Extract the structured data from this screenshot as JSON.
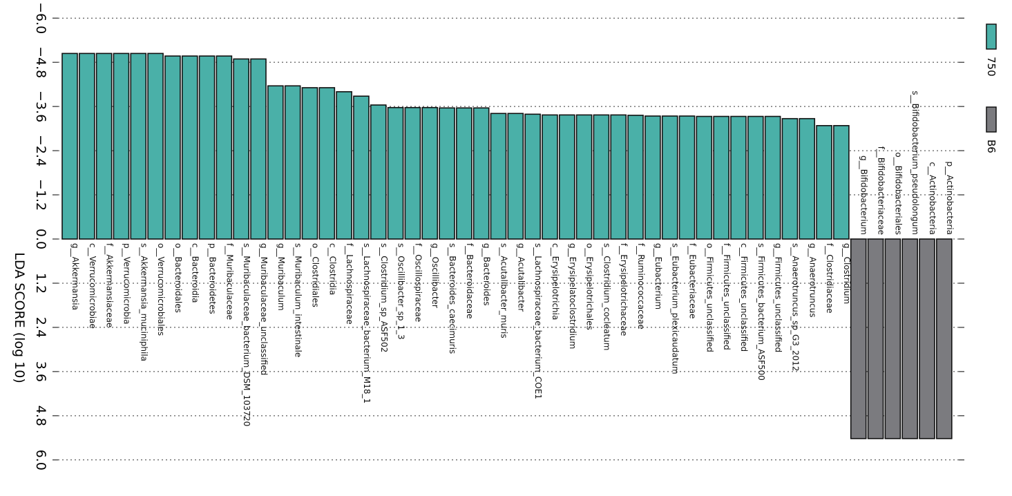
{
  "chart_data": {
    "type": "bar",
    "orientation": "rotated-90",
    "title": "",
    "ylabel": "LDA SCORE (log 10)",
    "ylim": [
      -6.0,
      6.0
    ],
    "yticks": [
      "-6.0",
      "-4.8",
      "-3.6",
      "-2.4",
      "-1.2",
      "0.0",
      "1.2",
      "2.4",
      "3.6",
      "4.8",
      "6.0"
    ],
    "grid": true,
    "legend": {
      "placement": "right",
      "entries": [
        {
          "name": "750",
          "color": "#4ab0a8"
        },
        {
          "name": "B6",
          "color": "#7b7b7f"
        }
      ]
    },
    "bars": [
      {
        "label": "g__Akkermansia",
        "group": "750",
        "value": -5.04
      },
      {
        "label": "c__Verrucomicrobiae",
        "group": "750",
        "value": -5.04
      },
      {
        "label": "f__Akkermansiaceae",
        "group": "750",
        "value": -5.04
      },
      {
        "label": "p__Verrucomicrobia",
        "group": "750",
        "value": -5.04
      },
      {
        "label": "s__Akkermansia_muciniphila",
        "group": "750",
        "value": -5.04
      },
      {
        "label": "o__Verrucomicrobiales",
        "group": "750",
        "value": -5.04
      },
      {
        "label": "o__Bacteroidales",
        "group": "750",
        "value": -4.97
      },
      {
        "label": "c__Bacteroidia",
        "group": "750",
        "value": -4.97
      },
      {
        "label": "p__Bacteroidetes",
        "group": "750",
        "value": -4.97
      },
      {
        "label": "f__Muribaculaceae",
        "group": "750",
        "value": -4.97
      },
      {
        "label": "s__Muribaculaceae_bacterium_DSM_103720",
        "group": "750",
        "value": -4.89
      },
      {
        "label": "g__Muribaculaceae_unclassified",
        "group": "750",
        "value": -4.89
      },
      {
        "label": "g__Muribaculum",
        "group": "750",
        "value": -4.16
      },
      {
        "label": "s__Muribaculum_intestinale",
        "group": "750",
        "value": -4.16
      },
      {
        "label": "o__Clostridiales",
        "group": "750",
        "value": -4.11
      },
      {
        "label": "c__Clostridia",
        "group": "750",
        "value": -4.11
      },
      {
        "label": "f__Lachnospiraceae",
        "group": "750",
        "value": -4.0
      },
      {
        "label": "s__Lachnospiraceae_bacterium_M18_1",
        "group": "750",
        "value": -3.88
      },
      {
        "label": "s__Clostridium_sp_ASF502",
        "group": "750",
        "value": -3.64
      },
      {
        "label": "s__Oscillibacter_sp_1_3",
        "group": "750",
        "value": -3.57
      },
      {
        "label": "f__Oscillospiraceae",
        "group": "750",
        "value": -3.57
      },
      {
        "label": "g__Oscillibacter",
        "group": "750",
        "value": -3.57
      },
      {
        "label": "s__Bacteroides_caecimuris",
        "group": "750",
        "value": -3.56
      },
      {
        "label": "f__Bacteroidaceae",
        "group": "750",
        "value": -3.56
      },
      {
        "label": "g__Bacteroides",
        "group": "750",
        "value": -3.56
      },
      {
        "label": "s__Acutalibacter_muris",
        "group": "750",
        "value": -3.41
      },
      {
        "label": "g__Acutalibacter",
        "group": "750",
        "value": -3.41
      },
      {
        "label": "s__Lachnospiraceae_bacterium_COE1",
        "group": "750",
        "value": -3.39
      },
      {
        "label": "c__Erysipelotrichia",
        "group": "750",
        "value": -3.37
      },
      {
        "label": "g__Erysipelatoclostridium",
        "group": "750",
        "value": -3.37
      },
      {
        "label": "o__Erysipelotrichales",
        "group": "750",
        "value": -3.37
      },
      {
        "label": "s__Clostridium_cocleatum",
        "group": "750",
        "value": -3.37
      },
      {
        "label": "f__Erysipelotrichaceae",
        "group": "750",
        "value": -3.37
      },
      {
        "label": "f__Ruminococcaceae",
        "group": "750",
        "value": -3.36
      },
      {
        "label": "g__Eubacterium",
        "group": "750",
        "value": -3.34
      },
      {
        "label": "s__Eubacterium_plexicaudatum",
        "group": "750",
        "value": -3.34
      },
      {
        "label": "f__Eubacteriaceae",
        "group": "750",
        "value": -3.34
      },
      {
        "label": "o__Firmicutes_unclassified",
        "group": "750",
        "value": -3.33
      },
      {
        "label": "f__Firmicutes_unclassified",
        "group": "750",
        "value": -3.33
      },
      {
        "label": "c__Firmicutes_unclassified",
        "group": "750",
        "value": -3.33
      },
      {
        "label": "s__Firmicutes_bacterium_ASF500",
        "group": "750",
        "value": -3.33
      },
      {
        "label": "g__Firmicutes_unclassified",
        "group": "750",
        "value": -3.33
      },
      {
        "label": "s__Anaerotruncus_sp_G3_2012",
        "group": "750",
        "value": -3.27
      },
      {
        "label": "g__Anaerotruncus",
        "group": "750",
        "value": -3.27
      },
      {
        "label": "f__Clostridiaceae",
        "group": "750",
        "value": -3.08
      },
      {
        "label": "g__Clostridium",
        "group": "750",
        "value": -3.08
      },
      {
        "label": "g__Bifidobacterium",
        "group": "B6",
        "value": 5.42
      },
      {
        "label": "f__Bifidobacteriaceae",
        "group": "B6",
        "value": 5.42
      },
      {
        "label": "o__Bifidobacteriales",
        "group": "B6",
        "value": 5.42
      },
      {
        "label": "s__Bifidobacterium_pseudolongum",
        "group": "B6",
        "value": 5.42
      },
      {
        "label": "c__Actinobacteria",
        "group": "B6",
        "value": 5.42
      },
      {
        "label": "p__Actinobacteria",
        "group": "B6",
        "value": 5.42
      }
    ]
  }
}
